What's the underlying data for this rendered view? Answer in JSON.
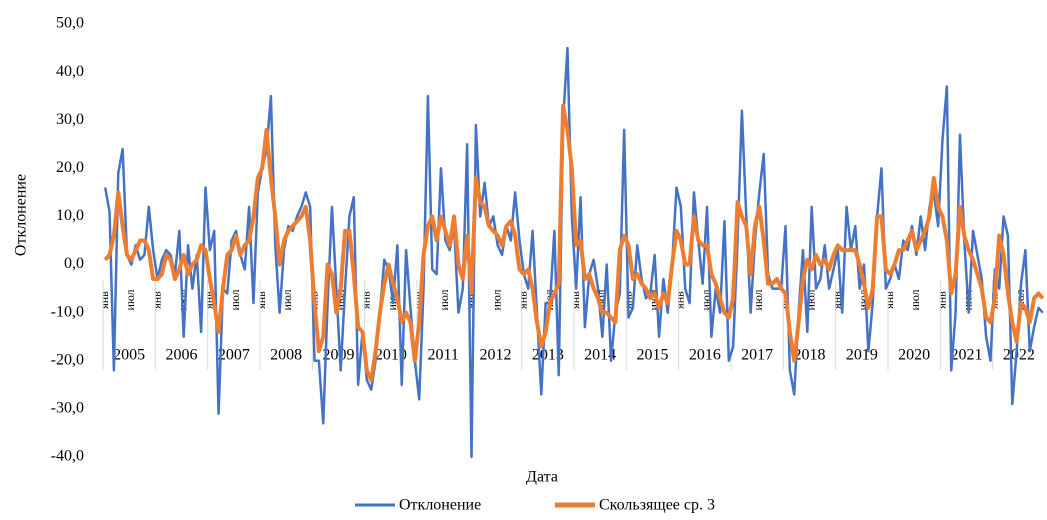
{
  "chart_data": {
    "type": "line",
    "y_label": "Отклонение",
    "x_label": "Дата",
    "groups": [
      "2005",
      "2006",
      "2007",
      "2008",
      "2009",
      "2010",
      "2011",
      "2012",
      "2013",
      "2014",
      "2015",
      "2016",
      "2017",
      "2018",
      "2019",
      "2020",
      "2021",
      "2022"
    ],
    "categories": [
      "янв",
      null,
      null,
      null,
      null,
      null,
      "июл",
      null,
      null,
      null,
      null,
      null,
      "янв",
      null,
      null,
      null,
      null,
      null,
      "июл",
      null,
      null,
      null,
      null,
      null,
      "янв",
      null,
      null,
      null,
      null,
      null,
      "июл",
      null,
      null,
      null,
      null,
      null,
      "янв",
      null,
      null,
      null,
      null,
      null,
      "июл",
      null,
      null,
      null,
      null,
      null,
      "янв",
      null,
      null,
      null,
      null,
      null,
      "июл",
      null,
      null,
      null,
      null,
      null,
      "янв",
      null,
      null,
      null,
      null,
      null,
      "июл",
      null,
      null,
      null,
      null,
      null,
      "янв",
      null,
      null,
      null,
      null,
      null,
      "июл",
      null,
      null,
      null,
      null,
      null,
      "янв",
      null,
      null,
      null,
      null,
      null,
      "июл",
      null,
      null,
      null,
      null,
      null,
      "янв",
      null,
      null,
      null,
      null,
      null,
      "июл",
      null,
      null,
      null,
      null,
      null,
      "янв",
      null,
      null,
      null,
      null,
      null,
      "июл",
      null,
      null,
      null,
      null,
      null,
      "янв",
      null,
      null,
      null,
      null,
      null,
      "июл",
      null,
      null,
      null,
      null,
      null,
      "янв",
      null,
      null,
      null,
      null,
      null,
      "июл",
      null,
      null,
      null,
      null,
      null,
      "янв",
      null,
      null,
      null,
      null,
      null,
      "июл",
      null,
      null,
      null,
      null,
      null,
      "янв",
      null,
      null,
      null,
      null,
      null,
      "июл",
      null,
      null,
      null,
      null,
      null,
      "янв",
      null,
      null,
      null,
      null,
      null,
      "июл",
      null,
      null,
      null,
      null,
      null,
      "янв",
      null,
      null,
      null,
      null,
      null,
      "июл",
      null,
      null,
      null,
      null,
      null,
      "янв",
      null,
      null,
      null,
      null,
      null,
      "июл",
      null,
      null,
      null,
      null,
      null,
      "янв",
      null,
      null,
      null,
      null,
      null,
      "июл",
      null,
      null,
      null,
      null,
      null
    ],
    "series": [
      {
        "name": "Отклонение",
        "color": "#4472c4",
        "values": [
          16,
          11,
          -22,
          19,
          24,
          2,
          0,
          4,
          1,
          2,
          12,
          3,
          -3,
          1,
          3,
          2,
          -2,
          7,
          -15,
          4,
          -5,
          2,
          -14,
          16,
          3,
          7,
          -31,
          -5,
          -6,
          5,
          7,
          2,
          -1,
          12,
          -8,
          15,
          20,
          24,
          35,
          4,
          -10,
          3,
          8,
          7,
          10,
          12,
          15,
          12,
          -20,
          -20,
          -33,
          -8,
          12,
          -5,
          -22,
          -5,
          10,
          14,
          -25,
          -14,
          -24,
          -26,
          -20,
          -10,
          1,
          -1,
          -8,
          4,
          -25,
          3,
          -9,
          -20,
          -28,
          -5,
          35,
          -1,
          -2,
          20,
          5,
          3,
          8,
          -10,
          -5,
          25,
          -40,
          29,
          10,
          17,
          8,
          10,
          4,
          2,
          8,
          5,
          15,
          5,
          -2,
          -5,
          7,
          -10,
          -27,
          -8,
          -8,
          7,
          -23,
          30,
          45,
          10,
          -5,
          14,
          -13,
          -2,
          1,
          -5,
          -15,
          0,
          -20,
          -10,
          -6,
          28,
          -11,
          -9,
          4,
          -3,
          -7,
          -6,
          2,
          -15,
          -3,
          -10,
          0,
          16,
          12,
          -5,
          -8,
          15,
          5,
          -4,
          12,
          -15,
          -5,
          -10,
          9,
          -20,
          -17,
          5,
          32,
          10,
          -10,
          5,
          15,
          23,
          -2,
          -5,
          -5,
          -5,
          8,
          -22,
          -27,
          -10,
          3,
          -14,
          12,
          -5,
          -3,
          4,
          -5,
          -1,
          3,
          -10,
          12,
          3,
          8,
          -5,
          0,
          -18,
          -8,
          10,
          20,
          -5,
          -3,
          0,
          -3,
          5,
          3,
          8,
          2,
          10,
          3,
          12,
          15,
          8,
          26,
          37,
          -22,
          -10,
          27,
          5,
          -10,
          7,
          2,
          -3,
          -15,
          -20,
          -1,
          -5,
          10,
          6,
          -29,
          -18,
          -4,
          3,
          -18,
          -13,
          -9,
          -10
        ]
      },
      {
        "name": "Скользящее ср. 3",
        "color": "#ed7d31",
        "values": [
          1,
          2,
          6,
          15,
          8,
          2,
          1,
          3,
          5,
          5,
          3,
          -3,
          -3,
          -2,
          2,
          1,
          -3,
          -1,
          2,
          -2,
          0,
          1,
          4,
          3,
          -3,
          -8,
          -14,
          -5,
          2,
          3,
          6,
          2,
          4,
          5,
          10,
          18,
          20,
          28,
          18,
          10,
          0,
          5,
          7,
          8,
          9,
          10,
          12,
          5,
          -8,
          -18,
          -15,
          0,
          -2,
          -10,
          -5,
          7,
          7,
          -2,
          -13,
          -14,
          -22,
          -24,
          -18,
          -10,
          -4,
          0,
          -4,
          -7,
          -12,
          -10,
          -12,
          -20,
          -12,
          2,
          8,
          10,
          5,
          10,
          7,
          4,
          10,
          0,
          -3,
          6,
          -6,
          18,
          13,
          12,
          8,
          7,
          6,
          4,
          8,
          9,
          6,
          -1,
          -2,
          -1,
          -5,
          -12,
          -17,
          -14,
          -8,
          -6,
          -4,
          33,
          28,
          20,
          4,
          5,
          -3,
          -2,
          -5,
          -7,
          -10,
          -10,
          -11,
          -12,
          3,
          6,
          4,
          -3,
          -2,
          -4,
          -5,
          -7,
          -6,
          -9,
          -6,
          -8,
          0,
          7,
          5,
          0,
          0,
          10,
          5,
          4,
          4,
          -2,
          -4,
          -7,
          -10,
          -11,
          -7,
          13,
          10,
          8,
          -2,
          8,
          12,
          5,
          -4,
          -4,
          -3,
          -5,
          -6,
          -14,
          -20,
          -12,
          -3,
          1,
          -1,
          2,
          0,
          1,
          -1,
          2,
          4,
          3,
          3,
          3,
          3,
          0,
          -4,
          -9,
          -5,
          10,
          10,
          -1,
          -2,
          0,
          3,
          3,
          5,
          7,
          3,
          5,
          7,
          10,
          18,
          12,
          10,
          5,
          -6,
          -2,
          12,
          6,
          3,
          1,
          -2,
          -5,
          -11,
          -12,
          -7,
          6,
          2,
          -6,
          -12,
          -16,
          -8,
          -9,
          -12,
          -7,
          -6,
          -7
        ]
      }
    ],
    "ylim": [
      -40,
      50
    ],
    "yticks": [
      {
        "value": -40,
        "label": "-40,0"
      },
      {
        "value": -30,
        "label": "-30,0"
      },
      {
        "value": -20,
        "label": "-20,0"
      },
      {
        "value": -10,
        "label": "-10,0"
      },
      {
        "value": 0,
        "label": "0,0"
      },
      {
        "value": 10,
        "label": "10,0"
      },
      {
        "value": 20,
        "label": "20,0"
      },
      {
        "value": 30,
        "label": "30,0"
      },
      {
        "value": 40,
        "label": "40,0"
      },
      {
        "value": 50,
        "label": "50,0"
      }
    ],
    "legend": "bottom"
  }
}
